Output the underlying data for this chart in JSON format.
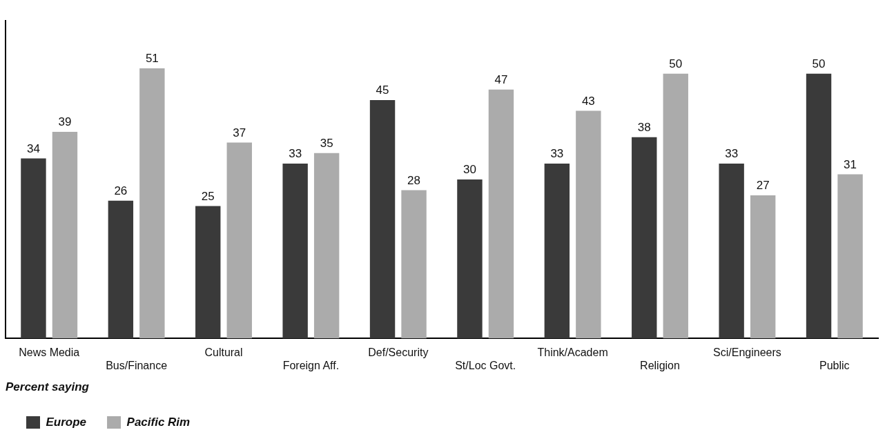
{
  "chart_data": {
    "type": "bar",
    "categories": [
      "News Media",
      "Bus/Finance",
      "Cultural",
      "Foreign Aff.",
      "Def/Security",
      "St/Loc Govt.",
      "Think/Academ",
      "Religion",
      "Sci/Engineers",
      "Public"
    ],
    "series": [
      {
        "name": "Europe",
        "color": "#3a3a3a",
        "values": [
          34,
          26,
          25,
          33,
          45,
          30,
          33,
          38,
          33,
          50
        ]
      },
      {
        "name": "Pacific Rim",
        "color": "#ababab",
        "values": [
          39,
          51,
          37,
          35,
          28,
          47,
          43,
          50,
          27,
          31
        ]
      }
    ],
    "legend_title": "Percent saying",
    "legend": "bottom left",
    "data_labels": true,
    "grid": false,
    "tick_labels": "x"
  }
}
